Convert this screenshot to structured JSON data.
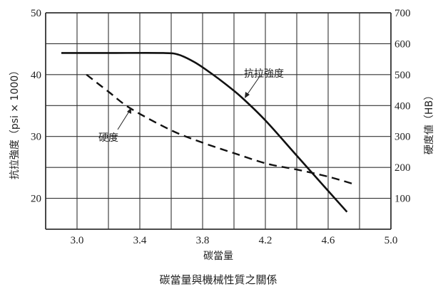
{
  "chart_data": {
    "type": "line",
    "title": "碳當量與機械性質之關係",
    "xlabel": "碳當量",
    "ylabel_left": "抗拉強度（psi × 1000）",
    "ylabel_right": "硬度値（HB）",
    "xlim": [
      2.8,
      5.0
    ],
    "ylim_left": [
      15,
      50
    ],
    "ylim_right": [
      0,
      700
    ],
    "x_ticks": [
      "3.0",
      "3.4",
      "3.8",
      "4.2",
      "4.6",
      "5.0"
    ],
    "y_ticks_left": [
      "50",
      "40",
      "30",
      "20"
    ],
    "y_ticks_right": [
      "700",
      "600",
      "500",
      "400",
      "300",
      "200",
      "100"
    ],
    "grid": true,
    "series": [
      {
        "name": "抗拉強度",
        "axis": "left",
        "style": "solid",
        "x": [
          2.9,
          3.2,
          3.55,
          3.65,
          3.75,
          3.85,
          3.95,
          4.05,
          4.2,
          4.4,
          4.6,
          4.72
        ],
        "y": [
          43.5,
          43.5,
          43.5,
          43.2,
          42.0,
          40.3,
          38.4,
          36.3,
          32.6,
          26.9,
          21.2,
          17.8
        ]
      },
      {
        "name": "硬度",
        "axis": "right",
        "style": "dashed",
        "x": [
          3.06,
          3.2,
          3.34,
          3.6,
          3.8,
          4.0,
          4.21,
          4.4,
          4.6,
          4.77
        ],
        "y": [
          500,
          445,
          391,
          320,
          280,
          246,
          212,
          193,
          170,
          145
        ]
      }
    ],
    "annotations": [
      {
        "text": "抗拉強度",
        "series": "抗拉強度"
      },
      {
        "text": "硬度",
        "series": "硬度"
      }
    ],
    "colors": {
      "line": "#111111",
      "grid": "#333333"
    }
  }
}
